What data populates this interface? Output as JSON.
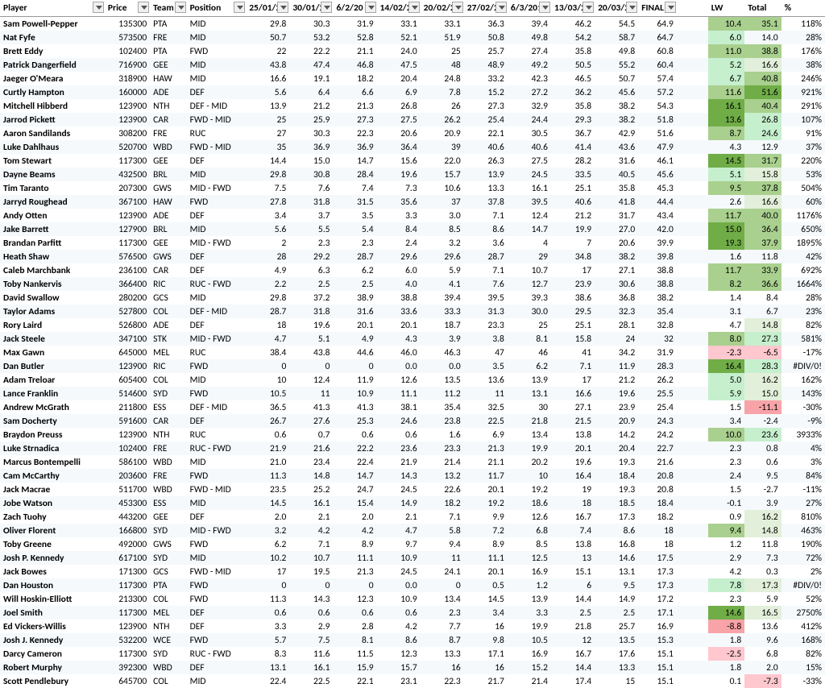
{
  "colors": {
    "green_lightest": "#e2efda",
    "green_light": "#c6efce",
    "green_mid": "#a9d08e",
    "green_dark": "#70ad47",
    "pink_light": "#ffc7ce",
    "pink_mid": "#f8a3a8"
  },
  "headers": [
    "Player",
    "Price",
    "Team",
    "Position",
    "25/01/20",
    "30/01/20",
    "6/2/20",
    "14/02/2",
    "20/02/20",
    "27/02/20",
    "6/3/201",
    "13/03/20",
    "20/03/20",
    "FINAL",
    "",
    "LW",
    "Total",
    "%"
  ],
  "rows": [
    {
      "player": "Sam Powell-Pepper",
      "price": "135300",
      "team": "PTA",
      "position": "MID",
      "d": [
        "29.8",
        "30.3",
        "31.9",
        "33.1",
        "33.1",
        "36.3",
        "39.4",
        "46.2",
        "54.5"
      ],
      "final": "64.9",
      "lw": "10.4",
      "lwc": "green_mid",
      "total": "35.1",
      "totc": "green_mid",
      "pct": "118%"
    },
    {
      "player": "Nat Fyfe",
      "price": "573500",
      "team": "FRE",
      "position": "MID",
      "d": [
        "50.7",
        "53.2",
        "52.8",
        "52.1",
        "51.9",
        "50.8",
        "49.8",
        "54.2",
        "58.7"
      ],
      "final": "64.7",
      "lw": "6.0",
      "lwc": "green_light",
      "total": "14.0",
      "pct": "28%"
    },
    {
      "player": "Brett Eddy",
      "price": "102400",
      "team": "PTA",
      "position": "FWD",
      "d": [
        "22",
        "22.2",
        "21.1",
        "24.0",
        "25",
        "25.7",
        "27.4",
        "35.8",
        "49.8"
      ],
      "final": "60.8",
      "lw": "11.0",
      "lwc": "green_mid",
      "total": "38.8",
      "totc": "green_mid",
      "pct": "176%"
    },
    {
      "player": "Patrick Dangerfield",
      "price": "716900",
      "team": "GEE",
      "position": "MID",
      "d": [
        "43.8",
        "47.4",
        "46.8",
        "47.5",
        "48",
        "48.9",
        "49.2",
        "50.5",
        "55.2"
      ],
      "final": "60.4",
      "lw": "5.2",
      "lwc": "green_light",
      "total": "16.6",
      "totc": "green_lightest",
      "pct": "38%"
    },
    {
      "player": "Jaeger O'Meara",
      "price": "318900",
      "team": "HAW",
      "position": "MID",
      "d": [
        "16.6",
        "19.1",
        "18.2",
        "20.4",
        "24.8",
        "33.2",
        "42.3",
        "46.5",
        "50.7"
      ],
      "final": "57.4",
      "lw": "6.7",
      "lwc": "green_light",
      "total": "40.8",
      "totc": "green_mid",
      "pct": "246%"
    },
    {
      "player": "Curtly Hampton",
      "price": "160000",
      "team": "ADE",
      "position": "DEF",
      "d": [
        "5.6",
        "6.4",
        "6.6",
        "6.9",
        "7.8",
        "15.2",
        "27.2",
        "36.2",
        "45.6"
      ],
      "final": "57.2",
      "lw": "11.6",
      "lwc": "green_mid",
      "total": "51.6",
      "totc": "green_dark",
      "pct": "921%"
    },
    {
      "player": "Mitchell Hibberd",
      "price": "123900",
      "team": "NTH",
      "position": "DEF - MID",
      "d": [
        "13.9",
        "21.2",
        "21.3",
        "26.8",
        "26",
        "27.3",
        "32.9",
        "35.8",
        "38.2"
      ],
      "final": "54.3",
      "lw": "16.1",
      "lwc": "green_dark",
      "total": "40.4",
      "totc": "green_mid",
      "pct": "291%"
    },
    {
      "player": "Jarrod Pickett",
      "price": "123900",
      "team": "CAR",
      "position": "FWD - MID",
      "d": [
        "25",
        "25.9",
        "27.3",
        "27.5",
        "26.2",
        "25.4",
        "24.4",
        "29.3",
        "38.2"
      ],
      "final": "51.8",
      "lw": "13.6",
      "lwc": "green_dark",
      "total": "26.8",
      "totc": "green_light",
      "pct": "107%"
    },
    {
      "player": "Aaron Sandilands",
      "price": "308200",
      "team": "FRE",
      "position": "RUC",
      "d": [
        "27",
        "30.3",
        "22.3",
        "20.6",
        "20.9",
        "22.1",
        "30.5",
        "36.7",
        "42.9"
      ],
      "final": "51.6",
      "lw": "8.7",
      "lwc": "green_mid",
      "total": "24.6",
      "totc": "green_light",
      "pct": "91%"
    },
    {
      "player": "Luke Dahlhaus",
      "price": "520700",
      "team": "WBD",
      "position": "FWD - MID",
      "d": [
        "35",
        "36.9",
        "36.9",
        "36.4",
        "39",
        "40.6",
        "40.6",
        "41.4",
        "43.6"
      ],
      "final": "47.9",
      "lw": "4.3",
      "total": "12.9",
      "pct": "37%"
    },
    {
      "player": "Tom Stewart",
      "price": "117300",
      "team": "GEE",
      "position": "DEF",
      "d": [
        "14.4",
        "15.0",
        "14.7",
        "15.6",
        "22.0",
        "26.3",
        "27.5",
        "28.2",
        "31.6"
      ],
      "final": "46.1",
      "lw": "14.5",
      "lwc": "green_dark",
      "total": "31.7",
      "totc": "green_mid",
      "pct": "220%"
    },
    {
      "player": "Dayne Beams",
      "price": "432500",
      "team": "BRL",
      "position": "MID",
      "d": [
        "29.8",
        "30.8",
        "28.4",
        "19.6",
        "15.7",
        "13.9",
        "24.5",
        "33.5",
        "40.5"
      ],
      "final": "45.6",
      "lw": "5.1",
      "lwc": "green_light",
      "total": "15.8",
      "totc": "green_lightest",
      "pct": "53%"
    },
    {
      "player": "Tim Taranto",
      "price": "207300",
      "team": "GWS",
      "position": "MID - FWD",
      "d": [
        "7.5",
        "7.6",
        "7.4",
        "7.3",
        "10.6",
        "13.3",
        "16.1",
        "25.1",
        "35.8"
      ],
      "final": "45.3",
      "lw": "9.5",
      "lwc": "green_mid",
      "total": "37.8",
      "totc": "green_mid",
      "pct": "504%"
    },
    {
      "player": "Jarryd Roughead",
      "price": "367100",
      "team": "HAW",
      "position": "FWD",
      "d": [
        "27.8",
        "31.8",
        "31.5",
        "35.6",
        "37",
        "37.8",
        "39.5",
        "40.6",
        "41.8"
      ],
      "final": "44.4",
      "lw": "2.6",
      "total": "16.6",
      "totc": "green_lightest",
      "pct": "60%"
    },
    {
      "player": "Andy Otten",
      "price": "123900",
      "team": "ADE",
      "position": "DEF",
      "d": [
        "3.4",
        "3.7",
        "3.5",
        "3.3",
        "3.0",
        "7.1",
        "12.4",
        "21.2",
        "31.7"
      ],
      "final": "43.4",
      "lw": "11.7",
      "lwc": "green_mid",
      "total": "40.0",
      "totc": "green_mid",
      "pct": "1176%"
    },
    {
      "player": "Jake Barrett",
      "price": "127900",
      "team": "BRL",
      "position": "MID",
      "d": [
        "5.6",
        "5.5",
        "5.4",
        "8.4",
        "8.5",
        "8.6",
        "14.7",
        "19.9",
        "27.0"
      ],
      "final": "42.0",
      "lw": "15.0",
      "lwc": "green_dark",
      "total": "36.4",
      "totc": "green_mid",
      "pct": "650%"
    },
    {
      "player": "Brandan Parfitt",
      "price": "117300",
      "team": "GEE",
      "position": "MID - FWD",
      "d": [
        "2",
        "2.3",
        "2.3",
        "2.4",
        "3.2",
        "3.6",
        "4",
        "7",
        "20.6"
      ],
      "final": "39.9",
      "lw": "19.3",
      "lwc": "green_dark",
      "total": "37.9",
      "totc": "green_mid",
      "pct": "1895%"
    },
    {
      "player": "Heath Shaw",
      "price": "576500",
      "team": "GWS",
      "position": "DEF",
      "d": [
        "28",
        "29.2",
        "28.7",
        "29.6",
        "29.6",
        "28.7",
        "29",
        "34.8",
        "38.2"
      ],
      "final": "39.8",
      "lw": "1.6",
      "total": "11.8",
      "pct": "42%"
    },
    {
      "player": "Caleb Marchbank",
      "price": "236100",
      "team": "CAR",
      "position": "DEF",
      "d": [
        "4.9",
        "6.3",
        "6.2",
        "6.0",
        "5.9",
        "7.1",
        "10.7",
        "17",
        "27.1"
      ],
      "final": "38.8",
      "lw": "11.7",
      "lwc": "green_mid",
      "total": "33.9",
      "totc": "green_mid",
      "pct": "692%"
    },
    {
      "player": "Toby Nankervis",
      "price": "366400",
      "team": "RIC",
      "position": "RUC - FWD",
      "d": [
        "2.2",
        "2.5",
        "2.5",
        "4.0",
        "4.1",
        "7.6",
        "12.7",
        "23.9",
        "30.6"
      ],
      "final": "38.8",
      "lw": "8.2",
      "lwc": "green_mid",
      "total": "36.6",
      "totc": "green_mid",
      "pct": "1664%"
    },
    {
      "player": "David Swallow",
      "price": "280200",
      "team": "GCS",
      "position": "MID",
      "d": [
        "29.8",
        "37.2",
        "38.9",
        "38.8",
        "39.4",
        "39.5",
        "39.3",
        "38.6",
        "36.8"
      ],
      "final": "38.2",
      "lw": "1.4",
      "total": "8.4",
      "pct": "28%"
    },
    {
      "player": "Taylor Adams",
      "price": "527800",
      "team": "COL",
      "position": "DEF - MID",
      "d": [
        "28.7",
        "31.8",
        "31.6",
        "33.6",
        "33.3",
        "31.3",
        "30.0",
        "29.5",
        "32.3"
      ],
      "final": "35.4",
      "lw": "3.1",
      "total": "6.7",
      "pct": "23%"
    },
    {
      "player": "Rory Laird",
      "price": "526800",
      "team": "ADE",
      "position": "DEF",
      "d": [
        "18",
        "19.6",
        "20.1",
        "20.1",
        "18.7",
        "23.3",
        "25",
        "25.1",
        "28.1"
      ],
      "final": "32.8",
      "lw": "4.7",
      "total": "14.8",
      "totc": "green_lightest",
      "pct": "82%"
    },
    {
      "player": "Jack Steele",
      "price": "347100",
      "team": "STK",
      "position": "MID - FWD",
      "d": [
        "4.7",
        "5.1",
        "4.9",
        "4.3",
        "3.9",
        "3.8",
        "8.1",
        "15.8",
        "24"
      ],
      "final": "32",
      "lw": "8.0",
      "lwc": "green_mid",
      "total": "27.3",
      "totc": "green_light",
      "pct": "581%"
    },
    {
      "player": "Max Gawn",
      "price": "645000",
      "team": "MEL",
      "position": "RUC",
      "d": [
        "38.4",
        "43.8",
        "44.6",
        "46.0",
        "46.3",
        "47",
        "46",
        "41",
        "34.2"
      ],
      "final": "31.9",
      "lw": "-2.3",
      "lwc": "pink_light",
      "total": "-6.5",
      "totc": "pink_light",
      "pct": "-17%"
    },
    {
      "player": "Dan Butler",
      "price": "123900",
      "team": "RIC",
      "position": "FWD",
      "d": [
        "0",
        "0",
        "0",
        "0.0",
        "0.0",
        "3.5",
        "6.2",
        "7.1",
        "11.9"
      ],
      "final": "28.3",
      "lw": "16.4",
      "lwc": "green_dark",
      "total": "28.3",
      "totc": "green_light",
      "pct": "#DIV/0!"
    },
    {
      "player": "Adam Treloar",
      "price": "605400",
      "team": "COL",
      "position": "MID",
      "d": [
        "10",
        "12.4",
        "11.9",
        "12.6",
        "13.5",
        "13.6",
        "13.9",
        "17",
        "21.2"
      ],
      "final": "26.2",
      "lw": "5.0",
      "lwc": "green_light",
      "total": "16.2",
      "totc": "green_lightest",
      "pct": "162%"
    },
    {
      "player": "Lance Franklin",
      "price": "514600",
      "team": "SYD",
      "position": "FWD",
      "d": [
        "10.5",
        "11",
        "10.9",
        "11.1",
        "11.2",
        "11",
        "13.1",
        "16.6",
        "19.6"
      ],
      "final": "25.5",
      "lw": "5.9",
      "lwc": "green_light",
      "total": "15.0",
      "totc": "green_lightest",
      "pct": "143%"
    },
    {
      "player": "Andrew McGrath",
      "price": "211800",
      "team": "ESS",
      "position": "DEF - MID",
      "d": [
        "36.5",
        "41.3",
        "41.3",
        "38.1",
        "35.4",
        "32.5",
        "30",
        "27.1",
        "23.9"
      ],
      "final": "25.4",
      "lw": "1.5",
      "total": "-11.1",
      "totc": "pink_mid",
      "pct": "-30%"
    },
    {
      "player": "Sam Docherty",
      "price": "591600",
      "team": "CAR",
      "position": "DEF",
      "d": [
        "26.7",
        "27.6",
        "25.3",
        "24.6",
        "23.8",
        "22.5",
        "21.8",
        "21.5",
        "20.9"
      ],
      "final": "24.3",
      "lw": "3.4",
      "total": "-2.4",
      "pct": "-9%"
    },
    {
      "player": "Braydon Preuss",
      "price": "123900",
      "team": "NTH",
      "position": "RUC",
      "d": [
        "0.6",
        "0.7",
        "0.6",
        "0.6",
        "1.6",
        "6.9",
        "13.4",
        "13.8",
        "14.2"
      ],
      "final": "24.2",
      "lw": "10.0",
      "lwc": "green_mid",
      "total": "23.6",
      "totc": "green_light",
      "pct": "3933%"
    },
    {
      "player": "Luke Strnadica",
      "price": "102400",
      "team": "FRE",
      "position": "RUC - FWD",
      "d": [
        "21.9",
        "21.6",
        "22.2",
        "23.6",
        "23.3",
        "21.3",
        "19.9",
        "20.1",
        "20.4"
      ],
      "final": "22.7",
      "lw": "2.3",
      "total": "0.8",
      "pct": "4%"
    },
    {
      "player": "Marcus Bontempelli",
      "price": "586100",
      "team": "WBD",
      "position": "MID",
      "d": [
        "21.0",
        "23.4",
        "22.4",
        "21.9",
        "21.4",
        "21.1",
        "20.2",
        "19.6",
        "19.3"
      ],
      "final": "21.6",
      "lw": "2.3",
      "total": "0.6",
      "pct": "3%"
    },
    {
      "player": "Cam McCarthy",
      "price": "203600",
      "team": "FRE",
      "position": "FWD",
      "d": [
        "11.3",
        "14.8",
        "14.7",
        "14.3",
        "13.2",
        "11.7",
        "10",
        "16.4",
        "18.4"
      ],
      "final": "20.8",
      "lw": "2.4",
      "total": "9.5",
      "pct": "84%"
    },
    {
      "player": "Jack Macrae",
      "price": "511700",
      "team": "WBD",
      "position": "FWD - MID",
      "d": [
        "23.5",
        "25.2",
        "24.7",
        "24.5",
        "22.6",
        "20.1",
        "19.2",
        "19",
        "19.3"
      ],
      "final": "20.8",
      "lw": "1.5",
      "total": "-2.7",
      "pct": "-11%"
    },
    {
      "player": "Jobe Watson",
      "price": "453300",
      "team": "ESS",
      "position": "MID",
      "d": [
        "14.5",
        "16.1",
        "15.4",
        "14.9",
        "18.2",
        "19.2",
        "18.6",
        "18",
        "18.5"
      ],
      "final": "18.4",
      "lw": "-0.1",
      "total": "3.9",
      "pct": "27%"
    },
    {
      "player": "Zach Tuohy",
      "price": "443200",
      "team": "GEE",
      "position": "DEF",
      "d": [
        "2.0",
        "2.1",
        "2.0",
        "2.1",
        "7.1",
        "9.9",
        "12.6",
        "16.7",
        "17.3"
      ],
      "final": "18.2",
      "lw": "0.9",
      "total": "16.2",
      "totc": "green_lightest",
      "pct": "810%"
    },
    {
      "player": "Oliver Florent",
      "price": "166800",
      "team": "SYD",
      "position": "MID - FWD",
      "d": [
        "3.2",
        "4.2",
        "4.2",
        "4.7",
        "5.8",
        "7.2",
        "6.8",
        "7.4",
        "8.6"
      ],
      "final": "18",
      "lw": "9.4",
      "lwc": "green_mid",
      "total": "14.8",
      "totc": "green_lightest",
      "pct": "463%"
    },
    {
      "player": "Toby Greene",
      "price": "492000",
      "team": "GWS",
      "position": "FWD",
      "d": [
        "6.2",
        "7.1",
        "8.9",
        "9.7",
        "9.4",
        "8.9",
        "8.5",
        "13.8",
        "16.8"
      ],
      "final": "18",
      "lw": "1.2",
      "total": "11.8",
      "pct": "190%"
    },
    {
      "player": "Josh P. Kennedy",
      "price": "617100",
      "team": "SYD",
      "position": "MID",
      "d": [
        "10.2",
        "10.7",
        "11.1",
        "10.9",
        "11",
        "11.1",
        "12.5",
        "13",
        "14.6"
      ],
      "final": "17.5",
      "lw": "2.9",
      "total": "7.3",
      "pct": "72%"
    },
    {
      "player": "Jack Bowes",
      "price": "171300",
      "team": "GCS",
      "position": "FWD - MID",
      "d": [
        "17",
        "19.5",
        "21.3",
        "24.5",
        "24.1",
        "20.1",
        "16.9",
        "15.1",
        "13.1"
      ],
      "final": "17.3",
      "lw": "4.2",
      "total": "0.3",
      "pct": "2%"
    },
    {
      "player": "Dan Houston",
      "price": "117300",
      "team": "PTA",
      "position": "FWD",
      "d": [
        "0",
        "0",
        "0",
        "0.0",
        "0",
        "0.5",
        "1.2",
        "6",
        "9.5"
      ],
      "final": "17.3",
      "lw": "7.8",
      "lwc": "green_light",
      "total": "17.3",
      "totc": "green_lightest",
      "pct": "#DIV/0!"
    },
    {
      "player": "Will Hoskin-Elliott",
      "price": "213300",
      "team": "COL",
      "position": "FWD",
      "d": [
        "11.3",
        "14.3",
        "12.3",
        "10.9",
        "13.4",
        "14.5",
        "13.9",
        "14.4",
        "14.9"
      ],
      "final": "17.2",
      "lw": "2.3",
      "total": "5.9",
      "pct": "52%"
    },
    {
      "player": "Joel Smith",
      "price": "117300",
      "team": "MEL",
      "position": "DEF",
      "d": [
        "0.6",
        "0.6",
        "0.6",
        "0.6",
        "2.3",
        "3.4",
        "3.3",
        "2.5",
        "2.5"
      ],
      "final": "17.1",
      "lw": "14.6",
      "lwc": "green_dark",
      "total": "16.5",
      "totc": "green_lightest",
      "pct": "2750%"
    },
    {
      "player": "Ed Vickers-Willis",
      "price": "123900",
      "team": "NTH",
      "position": "DEF",
      "d": [
        "3.3",
        "2.9",
        "2.8",
        "4.2",
        "7.7",
        "16",
        "19.9",
        "21.8",
        "25.7"
      ],
      "final": "16.9",
      "lw": "-8.8",
      "lwc": "pink_mid",
      "total": "13.6",
      "pct": "412%"
    },
    {
      "player": "Josh J. Kennedy",
      "price": "532200",
      "team": "WCE",
      "position": "FWD",
      "d": [
        "5.7",
        "7.5",
        "8.1",
        "8.6",
        "8.7",
        "9.8",
        "10.5",
        "12",
        "13.5"
      ],
      "final": "15.3",
      "lw": "1.8",
      "total": "9.6",
      "pct": "168%"
    },
    {
      "player": "Darcy Cameron",
      "price": "117300",
      "team": "SYD",
      "position": "RUC - FWD",
      "d": [
        "8.3",
        "11.6",
        "11.5",
        "12.3",
        "13.3",
        "17.1",
        "16.9",
        "16.7",
        "17.6"
      ],
      "final": "15.1",
      "lw": "-2.5",
      "lwc": "pink_light",
      "total": "6.8",
      "pct": "82%"
    },
    {
      "player": "Robert Murphy",
      "price": "392300",
      "team": "WBD",
      "position": "DEF",
      "d": [
        "13.1",
        "16.1",
        "15.9",
        "15.7",
        "16",
        "16",
        "15.2",
        "14.4",
        "13.3"
      ],
      "final": "15.1",
      "lw": "1.8",
      "total": "2.0",
      "pct": "15%"
    },
    {
      "player": "Scott Pendlebury",
      "price": "645700",
      "team": "COL",
      "position": "MID",
      "d": [
        "22.4",
        "22.5",
        "22.1",
        "23.1",
        "22.3",
        "21.7",
        "21.4",
        "17.4",
        "15"
      ],
      "final": "15.1",
      "lw": "0.1",
      "total": "-7.3",
      "totc": "pink_light",
      "pct": "-33%"
    }
  ]
}
